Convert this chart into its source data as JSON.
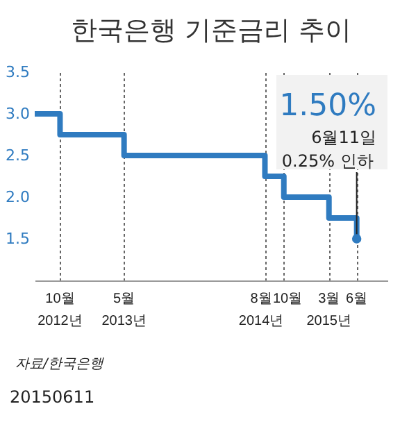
{
  "chart_data": {
    "type": "step",
    "title": "한국은행 기준금리 추이",
    "x": [
      "2012-07-20",
      "2012-10-11",
      "2013-05-09",
      "2014-08-14",
      "2014-10-15",
      "2015-03-12",
      "2015-06-11"
    ],
    "series": [
      {
        "color": "#2f7bc0",
        "values": [
          3.0,
          2.75,
          2.5,
          2.25,
          2.0,
          1.75,
          1.5
        ]
      }
    ],
    "xlim": [
      "2012-07-20",
      "2015-09-20"
    ],
    "xticks": [
      {
        "value": "2012-10-11",
        "label": "10월\n2012년"
      },
      {
        "value": "2013-05-09",
        "label": "5월\n2013년"
      },
      {
        "value": "2014-08-14",
        "label": "8월\n2014년"
      },
      {
        "value": "2014-10-15",
        "label": "10월"
      },
      {
        "value": "2015-03-12",
        "label": "3월\n2015년"
      },
      {
        "value": "2015-06-11",
        "label": "6월"
      }
    ],
    "ylim": [
      1.0,
      3.5
    ],
    "yticks": [
      1.5,
      {
        "value": 2,
        "label": "2.0"
      },
      2.5,
      {
        "value": 3,
        "label": "3.0"
      },
      3.5
    ],
    "grid": "x",
    "annotations": [
      "1.50%",
      "6월11일",
      {
        "text": "0.25% 인하",
        "x": "2015-06-11",
        "y": 1.5
      },
      "자료/한국은행",
      "20150611"
    ]
  }
}
